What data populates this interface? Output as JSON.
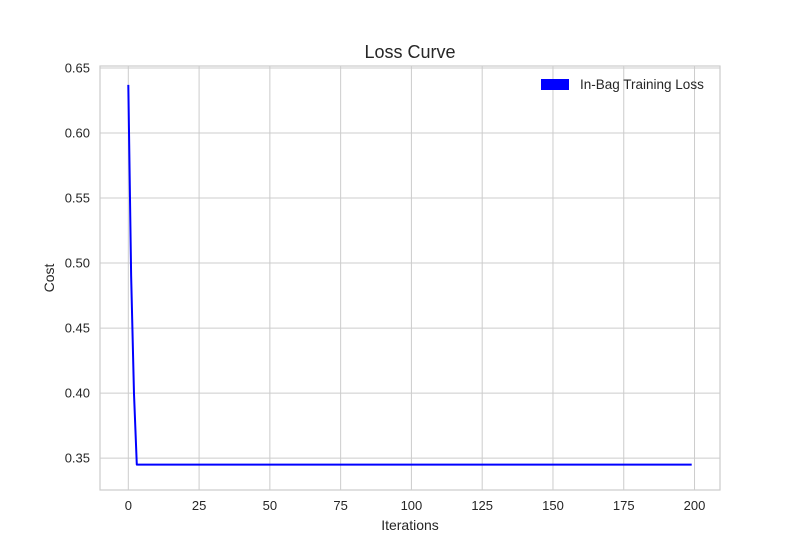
{
  "chart_data": {
    "type": "line",
    "title": "Loss Curve",
    "xlabel": "Iterations",
    "ylabel": "Cost",
    "xlim": [
      -10,
      209
    ],
    "ylim": [
      0.3255,
      0.6515
    ],
    "xticks": [
      0,
      25,
      50,
      75,
      100,
      125,
      150,
      175,
      200
    ],
    "yticks": [
      0.35,
      0.4,
      0.45,
      0.5,
      0.55,
      0.6,
      0.65
    ],
    "xtick_labels": [
      "0",
      "25",
      "50",
      "75",
      "100",
      "125",
      "150",
      "175",
      "200"
    ],
    "ytick_labels": [
      "0.35",
      "0.40",
      "0.45",
      "0.50",
      "0.55",
      "0.60",
      "0.65"
    ],
    "grid": true,
    "legend_position": "top-right",
    "series": [
      {
        "name": "In-Bag Training Loss",
        "color": "#0000ff",
        "x": [
          0,
          1,
          2,
          3,
          199
        ],
        "y": [
          0.637,
          0.49,
          0.4,
          0.345,
          0.345
        ]
      }
    ]
  }
}
